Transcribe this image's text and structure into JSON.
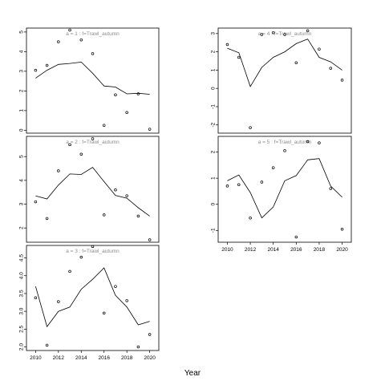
{
  "figure": {
    "xlabel": "Year"
  },
  "chart_data": [
    {
      "type": "line",
      "title": "a = 1  :  f=Trawl_autumn",
      "xlim": [
        2009.2,
        2020.8
      ],
      "ylim": [
        -0.15,
        5.2
      ],
      "xticks": [],
      "yticks": [
        0,
        1,
        2,
        3,
        4,
        5
      ],
      "line": {
        "x": [
          2010,
          2011,
          2012,
          2013,
          2014,
          2015,
          2016,
          2017,
          2018,
          2019,
          2020
        ],
        "y": [
          2.65,
          3.05,
          3.35,
          3.4,
          3.47,
          2.9,
          2.25,
          2.2,
          1.85,
          1.88,
          1.83
        ]
      },
      "points": {
        "x": [
          2010,
          2011,
          2012,
          2013,
          2014,
          2015,
          2016,
          2017,
          2018,
          2019,
          2020
        ],
        "y": [
          3.05,
          3.3,
          4.5,
          5.1,
          4.6,
          3.9,
          0.25,
          1.8,
          0.9,
          1.85,
          0.05
        ]
      }
    },
    {
      "type": "line",
      "title": "a = 2  :  f=Trawl_autumn",
      "xlim": [
        2009.2,
        2020.8
      ],
      "ylim": [
        1.4,
        5.85
      ],
      "xticks": [],
      "yticks": [
        2,
        3,
        4,
        5
      ],
      "line": {
        "x": [
          2010,
          2011,
          2012,
          2013,
          2014,
          2015,
          2016,
          2017,
          2018,
          2019,
          2020
        ],
        "y": [
          3.35,
          3.22,
          3.8,
          4.27,
          4.25,
          4.55,
          3.95,
          3.37,
          3.25,
          2.85,
          2.5
        ]
      },
      "points": {
        "x": [
          2010,
          2011,
          2012,
          2013,
          2014,
          2015,
          2016,
          2017,
          2018,
          2019,
          2020
        ],
        "y": [
          3.1,
          2.4,
          4.4,
          5.5,
          5.1,
          5.75,
          2.55,
          3.6,
          3.35,
          2.5,
          1.5
        ]
      }
    },
    {
      "type": "line",
      "title": "a = 3  :  f=Trawl_autumn",
      "xlim": [
        2009.2,
        2020.8
      ],
      "ylim": [
        1.9,
        4.85
      ],
      "xticks": [
        2010,
        2012,
        2014,
        2016,
        2018,
        2020
      ],
      "yticks": [
        2.0,
        2.5,
        3.0,
        3.5,
        4.0,
        4.5
      ],
      "line": {
        "x": [
          2010,
          2011,
          2012,
          2013,
          2014,
          2015,
          2016,
          2017,
          2018,
          2019,
          2020
        ],
        "y": [
          3.7,
          2.57,
          3.0,
          3.12,
          3.62,
          3.9,
          4.22,
          3.45,
          3.12,
          2.62,
          2.72
        ]
      },
      "points": {
        "x": [
          2010,
          2011,
          2012,
          2013,
          2014,
          2015,
          2016,
          2017,
          2018,
          2019,
          2020
        ],
        "y": [
          3.38,
          2.05,
          3.27,
          4.12,
          4.52,
          4.82,
          2.95,
          3.7,
          3.3,
          2.0,
          2.35
        ]
      }
    },
    {
      "type": "line",
      "title": "a = 4  :  f=Trawl_autumn",
      "xlim": [
        2009.2,
        2020.8
      ],
      "ylim": [
        -2.45,
        3.3
      ],
      "xticks": [],
      "yticks": [
        -2,
        -1,
        0,
        1,
        2,
        3
      ],
      "line": {
        "x": [
          2010,
          2011,
          2012,
          2013,
          2014,
          2015,
          2016,
          2017,
          2018,
          2019,
          2020
        ],
        "y": [
          2.2,
          1.95,
          0.1,
          1.15,
          1.7,
          2.0,
          2.45,
          2.7,
          1.7,
          1.45,
          1.0
        ]
      },
      "points": {
        "x": [
          2010,
          2011,
          2012,
          2013,
          2014,
          2015,
          2016,
          2017,
          2018,
          2019,
          2020
        ],
        "y": [
          2.4,
          1.7,
          -2.15,
          2.95,
          3.05,
          2.95,
          1.4,
          3.15,
          2.15,
          1.1,
          0.45
        ]
      }
    },
    {
      "type": "line",
      "title": "a = 5  :  f=Trawl_autumn",
      "xlim": [
        2009.2,
        2020.8
      ],
      "ylim": [
        -1.45,
        2.6
      ],
      "xticks": [
        2010,
        2012,
        2014,
        2016,
        2018,
        2020
      ],
      "yticks": [
        -1,
        0,
        1,
        2
      ],
      "line": {
        "x": [
          2010,
          2011,
          2012,
          2013,
          2014,
          2015,
          2016,
          2017,
          2018,
          2019,
          2020
        ],
        "y": [
          0.9,
          1.12,
          0.45,
          -0.52,
          -0.1,
          0.9,
          1.1,
          1.7,
          1.75,
          0.7,
          0.27
        ]
      },
      "points": {
        "x": [
          2010,
          2011,
          2012,
          2013,
          2014,
          2015,
          2016,
          2017,
          2018,
          2019,
          2020
        ],
        "y": [
          0.7,
          0.75,
          -0.52,
          0.85,
          1.4,
          2.05,
          -1.25,
          2.4,
          2.35,
          0.6,
          -0.95
        ]
      }
    }
  ]
}
